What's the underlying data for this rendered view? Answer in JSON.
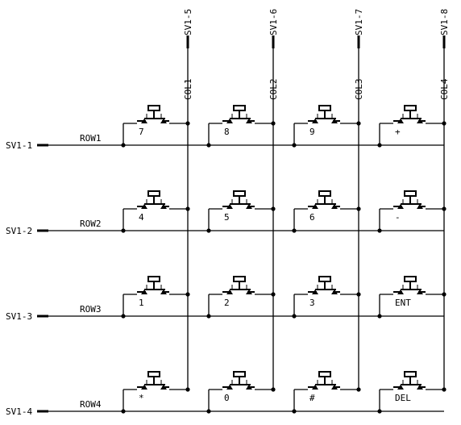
{
  "columns": [
    {
      "connector": "SV1-5",
      "label": "COL1"
    },
    {
      "connector": "SV1-6",
      "label": "COL2"
    },
    {
      "connector": "SV1-7",
      "label": "COL3"
    },
    {
      "connector": "SV1-8",
      "label": "COL4"
    }
  ],
  "rows": [
    {
      "connector": "SV1-1",
      "label": "ROW1"
    },
    {
      "connector": "SV1-2",
      "label": "ROW2"
    },
    {
      "connector": "SV1-3",
      "label": "ROW3"
    },
    {
      "connector": "SV1-4",
      "label": "ROW4"
    }
  ],
  "keys": [
    [
      "7",
      "8",
      "9",
      "+"
    ],
    [
      "4",
      "5",
      "6",
      "-"
    ],
    [
      "1",
      "2",
      "3",
      "ENT"
    ],
    [
      "*",
      "0",
      "#",
      "DEL"
    ]
  ]
}
